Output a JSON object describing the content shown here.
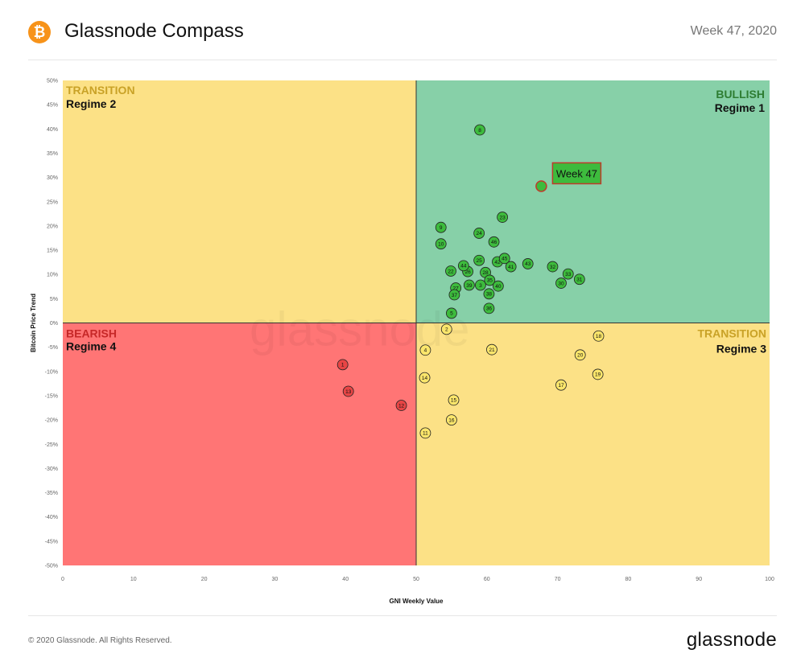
{
  "header": {
    "title": "Glassnode Compass",
    "week": "Week 47, 2020",
    "logo_icon": "bitcoin-logo-icon",
    "logo_glyph": "₿"
  },
  "footer": {
    "copyright": "© 2020 Glassnode. All Rights Reserved.",
    "brand": "glassnode"
  },
  "quadrants": {
    "top_left": {
      "label": "TRANSITION",
      "sub": "Regime 2",
      "label_color": "#c9a227"
    },
    "top_right": {
      "label": "BULLISH",
      "sub": "Regime 1",
      "label_color": "#2e7d32"
    },
    "bottom_left": {
      "label": "BEARISH",
      "sub": "Regime 4",
      "label_color": "#c62828"
    },
    "bottom_right": {
      "label": "TRANSITION",
      "sub": "Regime 3",
      "label_color": "#c9a227"
    }
  },
  "colors": {
    "bullish_bg": "#87d0a8",
    "transition_bg": "#fce186",
    "bearish_bg": "#ff7575",
    "green_point": "#3dbb3d",
    "yellow_point": "#fbe66b",
    "red_point": "#e84545",
    "highlight_border": "#c0392b"
  },
  "chart_data": {
    "type": "scatter",
    "xlabel": "GNI  Weekly Value",
    "ylabel": "Bitcoin  Price Trend",
    "xlim": [
      0,
      100
    ],
    "ylim": [
      -50,
      50
    ],
    "x_ticks": [
      "0",
      "10",
      "20",
      "30",
      "40",
      "50",
      "60",
      "70",
      "80",
      "90",
      "100"
    ],
    "y_ticks": [
      "50%",
      "45%",
      "40%",
      "35%",
      "30%",
      "25%",
      "20%",
      "15%",
      "10%",
      "5%",
      "0%",
      "-5%",
      "-10%",
      "-15%",
      "-20%",
      "-25%",
      "-30%",
      "-35%",
      "-40%",
      "-45%",
      "-50%"
    ],
    "highlight": {
      "label": "Week 47",
      "x": 67.7,
      "y": 28.2
    },
    "points": [
      {
        "label": "1",
        "x": 39.6,
        "y": -8.6
      },
      {
        "label": "2",
        "x": 54.3,
        "y": -1.3
      },
      {
        "label": "3",
        "x": 59.1,
        "y": 7.8
      },
      {
        "label": "4",
        "x": 51.3,
        "y": -5.6
      },
      {
        "label": "5",
        "x": 55.0,
        "y": 2.0
      },
      {
        "label": "8",
        "x": 59.0,
        "y": 39.8
      },
      {
        "label": "9",
        "x": 53.5,
        "y": 19.7
      },
      {
        "label": "10",
        "x": 53.5,
        "y": 16.3
      },
      {
        "label": "11",
        "x": 51.3,
        "y": -22.7
      },
      {
        "label": "12",
        "x": 47.9,
        "y": -17.0
      },
      {
        "label": "13",
        "x": 40.4,
        "y": -14.1
      },
      {
        "label": "14",
        "x": 51.2,
        "y": -11.3
      },
      {
        "label": "15",
        "x": 55.3,
        "y": -15.9
      },
      {
        "label": "16",
        "x": 55.0,
        "y": -20.0
      },
      {
        "label": "17",
        "x": 70.5,
        "y": -12.8
      },
      {
        "label": "18",
        "x": 75.8,
        "y": -2.7
      },
      {
        "label": "19",
        "x": 75.7,
        "y": -10.6
      },
      {
        "label": "20",
        "x": 73.2,
        "y": -6.6
      },
      {
        "label": "21",
        "x": 60.7,
        "y": -5.5
      },
      {
        "label": "22",
        "x": 54.9,
        "y": 10.7
      },
      {
        "label": "23",
        "x": 62.2,
        "y": 21.8
      },
      {
        "label": "24",
        "x": 58.9,
        "y": 18.5
      },
      {
        "label": "25",
        "x": 58.9,
        "y": 12.9
      },
      {
        "label": "26",
        "x": 57.3,
        "y": 10.6
      },
      {
        "label": "27",
        "x": 55.6,
        "y": 7.2
      },
      {
        "label": "28",
        "x": 59.8,
        "y": 10.4
      },
      {
        "label": "30",
        "x": 70.5,
        "y": 8.2
      },
      {
        "label": "31",
        "x": 73.1,
        "y": 9.0
      },
      {
        "label": "32",
        "x": 69.3,
        "y": 11.6
      },
      {
        "label": "33",
        "x": 71.5,
        "y": 10.1
      },
      {
        "label": "35",
        "x": 60.4,
        "y": 8.8
      },
      {
        "label": "36",
        "x": 60.3,
        "y": 3.0
      },
      {
        "label": "37",
        "x": 55.4,
        "y": 5.8
      },
      {
        "label": "38",
        "x": 60.3,
        "y": 6.0
      },
      {
        "label": "39",
        "x": 57.5,
        "y": 7.8
      },
      {
        "label": "40",
        "x": 61.6,
        "y": 7.6
      },
      {
        "label": "41",
        "x": 63.4,
        "y": 11.6
      },
      {
        "label": "42",
        "x": 61.5,
        "y": 12.6
      },
      {
        "label": "43",
        "x": 65.8,
        "y": 12.2
      },
      {
        "label": "44",
        "x": 56.7,
        "y": 11.8
      },
      {
        "label": "45",
        "x": 62.5,
        "y": 13.3
      },
      {
        "label": "46",
        "x": 61.0,
        "y": 16.7
      }
    ],
    "legend": "none",
    "grid": false
  }
}
